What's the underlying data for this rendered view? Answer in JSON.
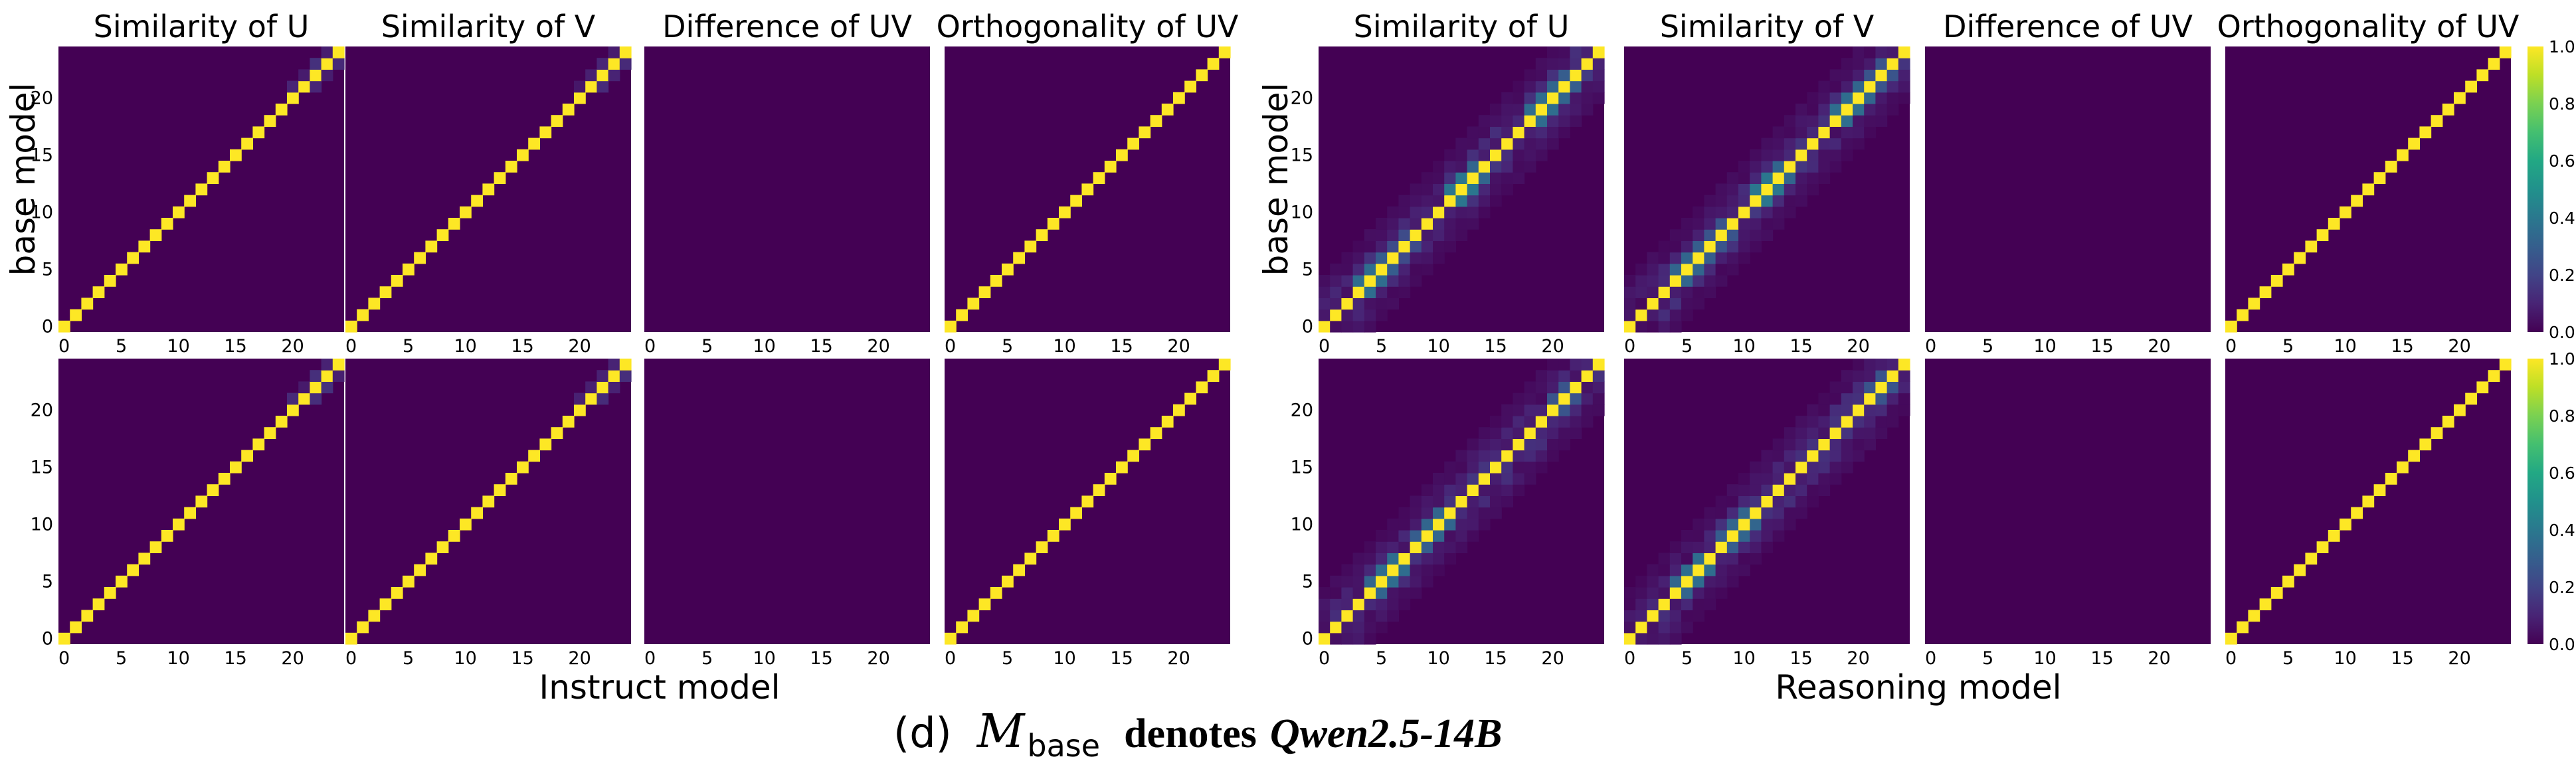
{
  "chart_data": {
    "type": "heatmap",
    "colormap": "viridis",
    "caption": {
      "prefix": "(d)",
      "symbol": "M",
      "subscript": "base",
      "text": "denotes",
      "model": "Qwen2.5-14B"
    },
    "groups": [
      {
        "name": "instruct",
        "xlabel": "Instruct model",
        "ylabel": "base model"
      },
      {
        "name": "reasoning",
        "xlabel": "Reasoning model",
        "ylabel": "base model"
      }
    ],
    "size": 25,
    "xticks": [
      0,
      5,
      10,
      15,
      20
    ],
    "yticks": [
      0,
      5,
      10,
      15,
      20
    ],
    "colorbar": {
      "range": [
        0.0,
        1.0
      ],
      "ticks": [
        "0.0",
        "0.2",
        "0.4",
        "0.6",
        "0.8",
        "1.0"
      ]
    },
    "panels": [
      {
        "group": "instruct",
        "row": 0,
        "title": "Similarity of U",
        "pattern": "diag-tight",
        "highlights": []
      },
      {
        "group": "instruct",
        "row": 0,
        "title": "Similarity of V",
        "pattern": "diag-tight",
        "highlights": []
      },
      {
        "group": "instruct",
        "row": 0,
        "title": "Difference of UV",
        "pattern": "blank",
        "highlights": []
      },
      {
        "group": "instruct",
        "row": 0,
        "title": "Orthogonality of UV",
        "pattern": "diag",
        "highlights": []
      },
      {
        "group": "instruct",
        "row": 1,
        "title": "",
        "pattern": "diag-tight",
        "highlights": []
      },
      {
        "group": "instruct",
        "row": 1,
        "title": "",
        "pattern": "diag-tight",
        "highlights": []
      },
      {
        "group": "instruct",
        "row": 1,
        "title": "",
        "pattern": "blank",
        "highlights": []
      },
      {
        "group": "instruct",
        "row": 1,
        "title": "",
        "pattern": "diag",
        "highlights": []
      },
      {
        "group": "reasoning",
        "row": 0,
        "title": "Similarity of U",
        "pattern": "diag-wide",
        "highlights": [
          [
            4,
            0.55
          ],
          [
            5,
            0.45
          ],
          [
            7,
            0.35
          ],
          [
            12,
            0.6
          ],
          [
            13,
            0.5
          ],
          [
            19,
            0.55
          ],
          [
            20,
            0.5
          ],
          [
            21,
            0.45
          ]
        ]
      },
      {
        "group": "reasoning",
        "row": 0,
        "title": "Similarity of V",
        "pattern": "diag-wide",
        "highlights": [
          [
            5,
            0.5
          ],
          [
            6,
            0.45
          ],
          [
            8,
            0.4
          ],
          [
            12,
            0.6
          ],
          [
            13,
            0.5
          ],
          [
            19,
            0.55
          ],
          [
            20,
            0.5
          ],
          [
            22,
            0.4
          ]
        ]
      },
      {
        "group": "reasoning",
        "row": 0,
        "title": "Difference of UV",
        "pattern": "blank",
        "highlights": []
      },
      {
        "group": "reasoning",
        "row": 0,
        "title": "Orthogonality of UV",
        "pattern": "diag",
        "highlights": []
      },
      {
        "group": "reasoning",
        "row": 1,
        "title": "",
        "pattern": "diag-wide",
        "highlights": [
          [
            5,
            0.5
          ],
          [
            6,
            0.55
          ],
          [
            9,
            0.45
          ],
          [
            10,
            0.5
          ],
          [
            21,
            0.4
          ]
        ]
      },
      {
        "group": "reasoning",
        "row": 1,
        "title": "",
        "pattern": "diag-wide",
        "highlights": [
          [
            5,
            0.5
          ],
          [
            6,
            0.55
          ],
          [
            9,
            0.45
          ],
          [
            10,
            0.5
          ],
          [
            22,
            0.4
          ]
        ]
      },
      {
        "group": "reasoning",
        "row": 1,
        "title": "",
        "pattern": "blank",
        "highlights": []
      },
      {
        "group": "reasoning",
        "row": 1,
        "title": "",
        "pattern": "diag",
        "highlights": []
      }
    ]
  }
}
